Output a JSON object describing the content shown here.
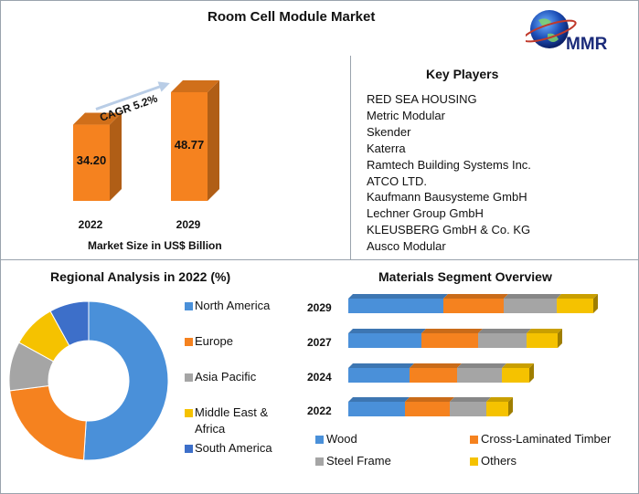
{
  "title": "Room Cell Module Market",
  "logo_text": "MMR",
  "market_size": {
    "cagr_label": "CAGR 5.2%",
    "xlabel": "Market Size in US$ Billion",
    "years": [
      "2022",
      "2029"
    ],
    "value_labels": [
      "34.20",
      "48.77"
    ],
    "bar_color": "#f5821f"
  },
  "key_players": {
    "title": "Key Players",
    "items": [
      "RED SEA HOUSING",
      "Metric Modular",
      "Skender",
      "Katerra",
      "Ramtech Building Systems Inc.",
      "ATCO LTD.",
      "Kaufmann Bausysteme GmbH",
      "Lechner Group GmbH",
      "KLEUSBERG GmbH & Co. KG",
      "Ausco Modular"
    ]
  },
  "regional": {
    "title": "Regional Analysis in 2022 (%)",
    "legend": [
      {
        "label": "North America",
        "color": "#4a90d9"
      },
      {
        "label": "Europe",
        "color": "#f5821f"
      },
      {
        "label": "Asia Pacific",
        "color": "#a5a5a5"
      },
      {
        "label": "Middle East & Africa",
        "color": "#f5c200"
      },
      {
        "label": "South America",
        "color": "#3d6fc9"
      }
    ]
  },
  "materials": {
    "title": "Materials Segment Overview",
    "years": [
      "2029",
      "2027",
      "2024",
      "2022"
    ],
    "legend": [
      {
        "label": "Wood",
        "color": "#4a90d9"
      },
      {
        "label": "Cross-Laminated Timber",
        "color": "#f5821f"
      },
      {
        "label": "Steel Frame",
        "color": "#a5a5a5"
      },
      {
        "label": "Others",
        "color": "#f5c200"
      }
    ]
  },
  "chart_data": [
    {
      "type": "bar",
      "title": "Room Cell Module Market",
      "xlabel": "Market Size in US$ Billion",
      "categories": [
        "2022",
        "2029"
      ],
      "values": [
        34.2,
        48.77
      ],
      "annotations": [
        "CAGR 5.2%"
      ]
    },
    {
      "type": "pie",
      "title": "Regional Analysis in 2022 (%)",
      "categories": [
        "North America",
        "Europe",
        "Asia Pacific",
        "Middle East & Africa",
        "South America"
      ],
      "values": [
        51,
        22,
        10,
        9,
        8
      ],
      "legend": "right"
    },
    {
      "type": "bar",
      "orientation": "horizontal",
      "stacked": true,
      "title": "Materials Segment Overview",
      "categories": [
        "2029",
        "2027",
        "2024",
        "2022"
      ],
      "series": [
        {
          "name": "Wood",
          "values": [
            104,
            80,
            67,
            62
          ]
        },
        {
          "name": "Cross-Laminated Timber",
          "values": [
            66,
            62,
            52,
            49
          ]
        },
        {
          "name": "Steel Frame",
          "values": [
            58,
            53,
            49,
            40
          ]
        },
        {
          "name": "Others",
          "values": [
            40,
            34,
            30,
            24
          ]
        }
      ],
      "legend": "bottom"
    }
  ]
}
